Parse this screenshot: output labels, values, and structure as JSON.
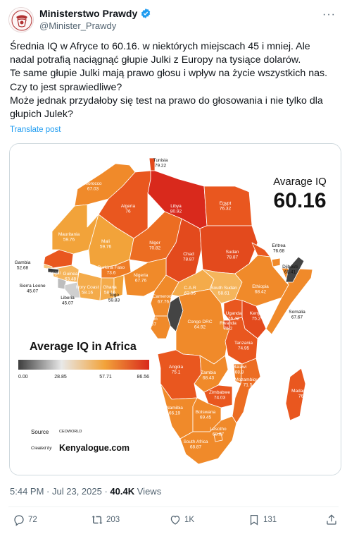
{
  "author": {
    "display_name": "Ministerstwo Prawdy",
    "handle": "@Minister_Prawdy"
  },
  "tweet": {
    "lines": [
      "Średnia IQ w Afryce to 60.16. w niektórych miejscach 45 i mniej. Ale",
      "nadal potrafią naciągnąć głupie Julki z Europy na tysiące dolarów.",
      "Te same głupie Julki mają prawo głosu i wpływ na życie wszystkich nas.",
      "Czy to jest sprawiedliwe?",
      "Może jednak przydałoby się test na prawo do głosowania i nie tylko dla",
      "głupich Julek?"
    ],
    "translate_label": "Translate post"
  },
  "image": {
    "headline": "Avarage IQ",
    "average_value": "60.16",
    "legend_title": "Average IQ in Africa",
    "legend_ticks": [
      "0.00",
      "28.85",
      "57.71",
      "86.56"
    ],
    "source_label": "Source",
    "source_value": "CEOWORLD",
    "created_label": "Created by",
    "created_value": "Kenyalogue.com",
    "colors": {
      "low": "#3d3d3d",
      "mid": "#f2a33a",
      "high": "#d9291c"
    },
    "countries": [
      {
        "name": "Tunisia",
        "value": "79.22"
      },
      {
        "name": "Morocco",
        "value": "67.03"
      },
      {
        "name": "Algeria",
        "value": "76"
      },
      {
        "name": "Libya",
        "value": "80.92"
      },
      {
        "name": "Egypt",
        "value": "76.32"
      },
      {
        "name": "Mauritania",
        "value": "59.76"
      },
      {
        "name": "Mali",
        "value": "59.76"
      },
      {
        "name": "Niger",
        "value": "70.82"
      },
      {
        "name": "Chad",
        "value": "78.87"
      },
      {
        "name": "Sudan",
        "value": "78.87"
      },
      {
        "name": "Eritrea",
        "value": "76.68"
      },
      {
        "name": "Djibouti",
        "value": "68.41"
      },
      {
        "name": "Gambia",
        "value": "52.68"
      },
      {
        "name": "Senegal",
        "value": "77.67"
      },
      {
        "name": "Guinea",
        "value": "63.48"
      },
      {
        "name": "Sierra Leone",
        "value": "45.07"
      },
      {
        "name": "Liberia",
        "value": "45.07"
      },
      {
        "name": "Burkina Faso",
        "value": "73.6"
      },
      {
        "name": "Ivory Coast",
        "value": "58.16"
      },
      {
        "name": "Ghana",
        "value": "58.16"
      },
      {
        "name": "Togo",
        "value": "59.83"
      },
      {
        "name": "Nigeria",
        "value": "67.76"
      },
      {
        "name": "Cameroon",
        "value": "67.76"
      },
      {
        "name": "C.A.R",
        "value": "62.55"
      },
      {
        "name": "South Sudan",
        "value": "58.61"
      },
      {
        "name": "Ethiopia",
        "value": "68.42"
      },
      {
        "name": "Somalia",
        "value": "67.67"
      },
      {
        "name": "Gabon",
        "value": "62.97"
      },
      {
        "name": "Congo DRC",
        "value": "64.92"
      },
      {
        "name": "Uganda",
        "value": "76.42"
      },
      {
        "name": "Kenya",
        "value": "75.2"
      },
      {
        "name": "Rwanda",
        "value": "75.2"
      },
      {
        "name": "Tanzania",
        "value": "74.95"
      },
      {
        "name": "Angola",
        "value": "75.1"
      },
      {
        "name": "Zambia",
        "value": "68.43"
      },
      {
        "name": "Malawi",
        "value": "68.8"
      },
      {
        "name": "Mozambique",
        "value": "71.5"
      },
      {
        "name": "Zimbabwe",
        "value": "74.03"
      },
      {
        "name": "Madagascar",
        "value": "76.79"
      },
      {
        "name": "Namibia",
        "value": "66.19"
      },
      {
        "name": "Botswana",
        "value": "69.45"
      },
      {
        "name": "Lesotho",
        "value": "68.87"
      },
      {
        "name": "South Africa",
        "value": "68.87"
      }
    ]
  },
  "meta": {
    "time": "5:44 PM",
    "date": "Jul 23, 2025",
    "views_count": "40.4K",
    "views_label": "Views"
  },
  "actions": {
    "replies": "72",
    "reposts": "203",
    "likes": "1K",
    "bookmarks": "131"
  }
}
